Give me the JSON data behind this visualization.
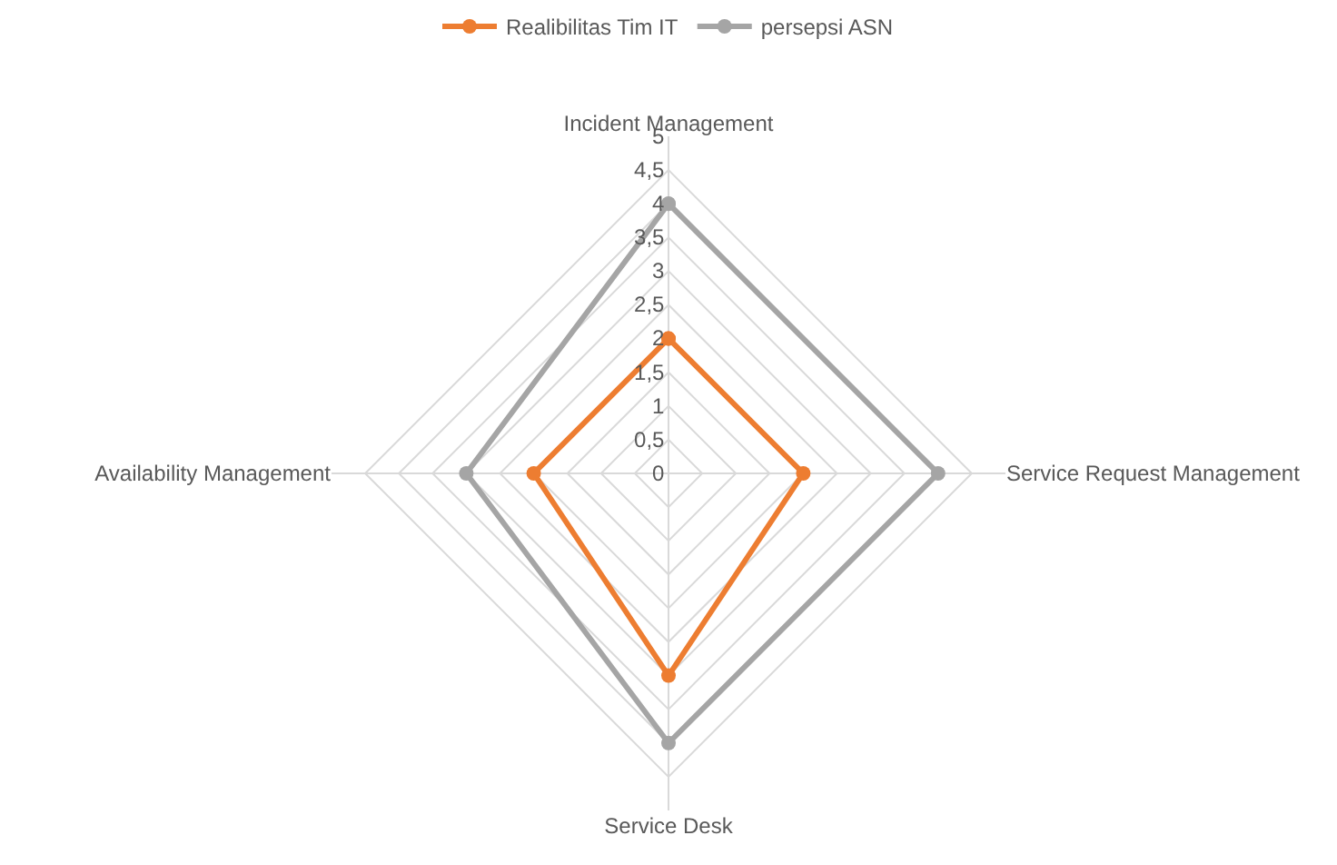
{
  "chart_data": {
    "type": "radar",
    "categories": [
      "Incident Management",
      "Service Request Management",
      "Service Desk",
      "Availability Management"
    ],
    "series": [
      {
        "name": "Realibilitas Tim IT",
        "color": "#ed7d31",
        "values": [
          2,
          2,
          3,
          2
        ]
      },
      {
        "name": "persepsi ASN",
        "color": "#a5a5a5",
        "values": [
          4,
          4,
          4,
          3
        ]
      }
    ],
    "ylim": [
      0,
      5
    ],
    "yticks": [
      0,
      {
        "value": 0.5,
        "label": "0,5"
      },
      1,
      {
        "value": 1.5,
        "label": "1,5"
      },
      2,
      {
        "value": 2.5,
        "label": "2,5"
      },
      3,
      {
        "value": 3.5,
        "label": "3,5"
      },
      4,
      {
        "value": 4.5,
        "label": "4,5"
      },
      5
    ],
    "grid": true,
    "legend": "top",
    "marker": "circle",
    "line_style": "solid"
  }
}
